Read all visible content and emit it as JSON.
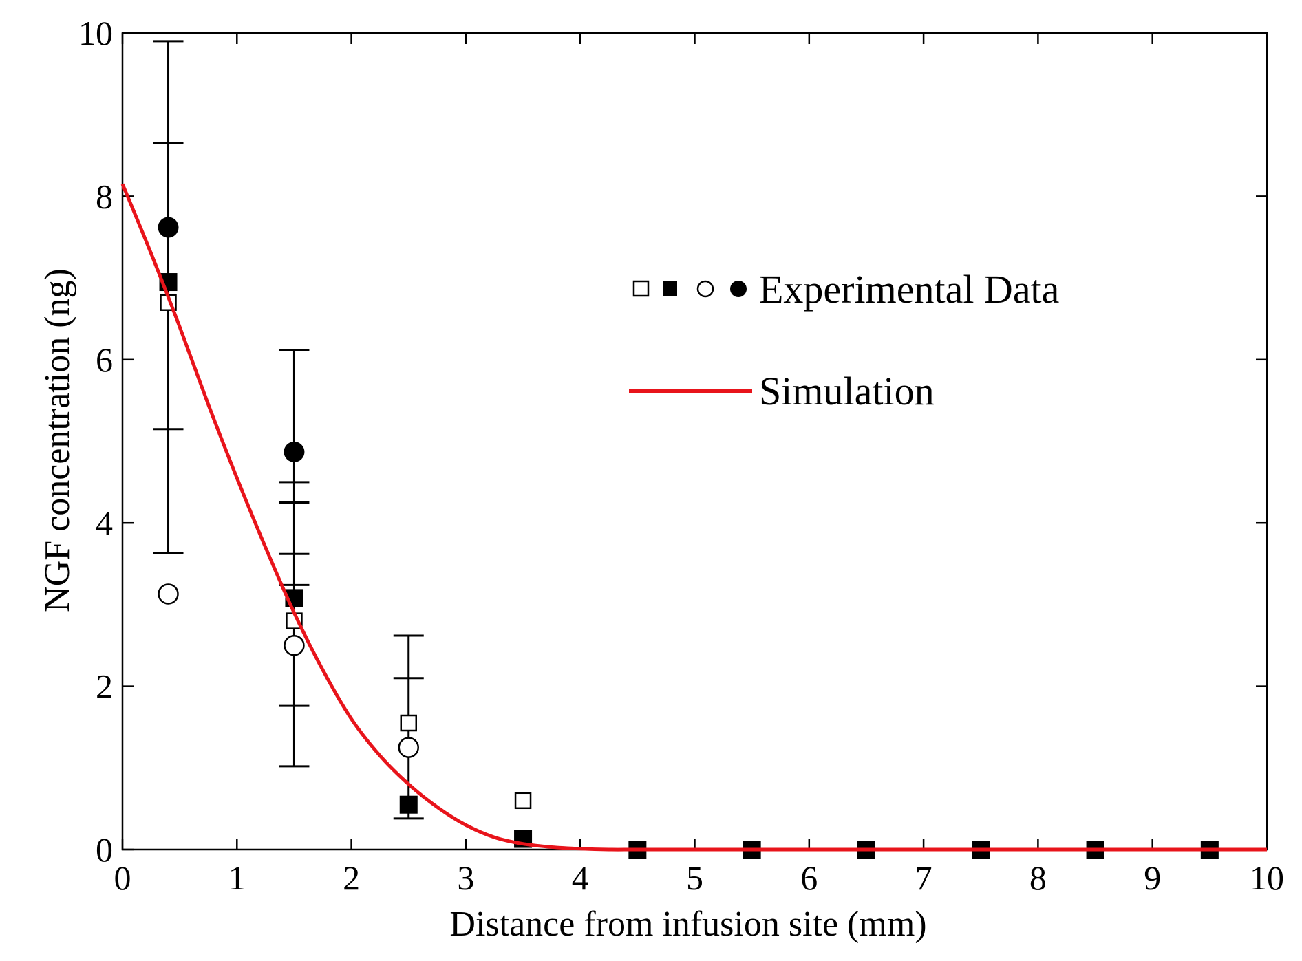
{
  "chart_data": {
    "type": "scatter",
    "title": "",
    "xlabel": "Distance from infusion site (mm)",
    "ylabel": "NGF concentration (ng)",
    "xlim": [
      0,
      10
    ],
    "ylim": [
      0,
      10
    ],
    "xticks": [
      "0",
      "1",
      "2",
      "3",
      "4",
      "5",
      "6",
      "7",
      "8",
      "9",
      "10"
    ],
    "yticks": [
      "0",
      "2",
      "4",
      "6",
      "8",
      "10"
    ],
    "grid": false,
    "legend": {
      "placement": "upper-right",
      "experimental_label": "Experimental Data",
      "simulation_label": "Simulation"
    },
    "simulation": {
      "name": "Simulation",
      "color": "#e8141b",
      "x": [
        0,
        0.25,
        0.5,
        0.75,
        1.0,
        1.25,
        1.5,
        1.75,
        2.0,
        2.25,
        2.5,
        2.75,
        3.0,
        3.25,
        3.5,
        3.75,
        4.0,
        4.25,
        4.5,
        5,
        6,
        7,
        8,
        9,
        10
      ],
      "y": [
        8.15,
        7.3,
        6.4,
        5.45,
        4.55,
        3.7,
        2.9,
        2.2,
        1.6,
        1.15,
        0.8,
        0.52,
        0.3,
        0.15,
        0.07,
        0.03,
        0.01,
        0.0,
        0.0,
        0.0,
        0.0,
        0.0,
        0.0,
        0.0,
        0.0
      ]
    },
    "series": [
      {
        "name": "open-square",
        "marker": "open-square",
        "x": [
          0.4,
          1.5,
          2.5,
          3.5
        ],
        "y": [
          6.7,
          2.8,
          1.55,
          0.6
        ]
      },
      {
        "name": "filled-square",
        "marker": "filled-square",
        "x": [
          0.4,
          1.5,
          2.5,
          3.5,
          4.5,
          5.5,
          6.5,
          7.5,
          8.5,
          9.5
        ],
        "y": [
          6.95,
          3.08,
          0.55,
          0.13,
          0.0,
          0.0,
          0.0,
          0.0,
          0.0,
          0.0
        ]
      },
      {
        "name": "open-circle",
        "marker": "open-circle",
        "x": [
          0.4,
          1.5,
          2.5
        ],
        "y": [
          3.13,
          2.5,
          1.25
        ]
      },
      {
        "name": "filled-circle",
        "marker": "filled-circle",
        "x": [
          0.4,
          1.5
        ],
        "y": [
          7.62,
          4.87
        ]
      }
    ],
    "error_bars": [
      {
        "x": 0.4,
        "low": 3.63,
        "high": 9.9,
        "caps": [
          3.63,
          5.15,
          8.65,
          9.9
        ]
      },
      {
        "x": 1.5,
        "low": 1.02,
        "high": 6.12,
        "caps": [
          1.02,
          1.76,
          3.24,
          3.62,
          4.25,
          4.5,
          6.12
        ]
      },
      {
        "x": 2.5,
        "low": 0.38,
        "high": 2.62,
        "caps": [
          0.38,
          2.1,
          2.62
        ]
      }
    ]
  }
}
